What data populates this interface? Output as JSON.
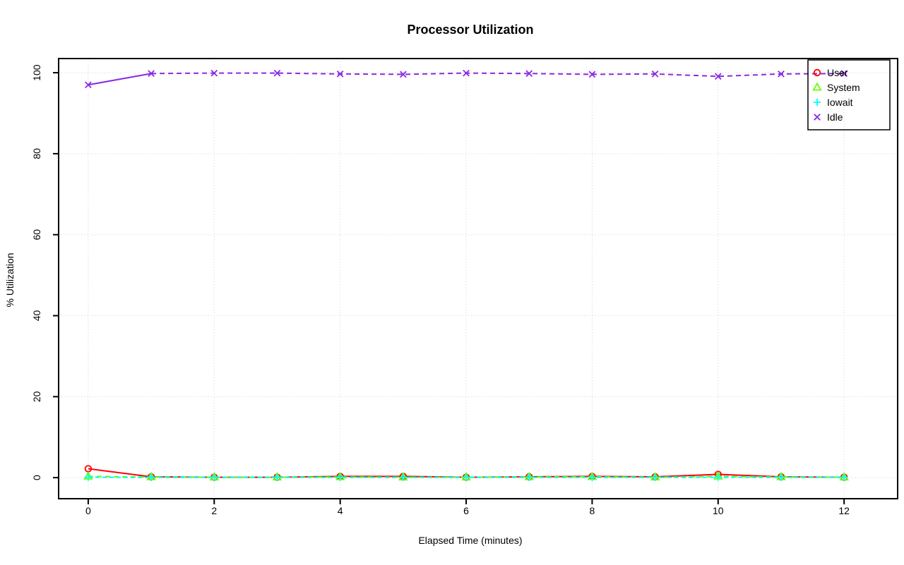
{
  "chart_data": {
    "type": "line",
    "title": "Processor Utilization",
    "xlabel": "Elapsed Time (minutes)",
    "ylabel": "% Utilization",
    "x": [
      0,
      1,
      2,
      3,
      4,
      5,
      6,
      7,
      8,
      9,
      10,
      11,
      12
    ],
    "xticks": [
      0,
      2,
      4,
      6,
      8,
      10,
      12
    ],
    "yticks": [
      0,
      20,
      40,
      60,
      80,
      100
    ],
    "xlim": [
      -0.47,
      12.85
    ],
    "ylim": [
      -5.2,
      103.5
    ],
    "grid": true,
    "grid_color": "#d3d3d3",
    "axis_color": "#000000",
    "background": "#ffffff",
    "legend_position": "top-right",
    "series": [
      {
        "name": "User",
        "color": "#ff0000",
        "marker": "circle",
        "line_style": "solid",
        "values": [
          2.2,
          0.2,
          0.1,
          0.1,
          0.3,
          0.3,
          0.1,
          0.2,
          0.3,
          0.2,
          0.8,
          0.2,
          0.1
        ]
      },
      {
        "name": "System",
        "color": "#66ff00",
        "marker": "triangle",
        "line_style": "dashed",
        "values": [
          0.3,
          0.15,
          0.1,
          0.1,
          0.15,
          0.1,
          0.1,
          0.15,
          0.2,
          0.1,
          0.3,
          0.15,
          0.1
        ]
      },
      {
        "name": "Iowait",
        "color": "#00ffff",
        "marker": "plus",
        "line_style": "dotted",
        "values": [
          0.1,
          0.05,
          0.05,
          0.05,
          0.05,
          0.05,
          0.05,
          0.05,
          0.05,
          0.05,
          0.1,
          0.05,
          0.05
        ]
      },
      {
        "name": "Idle",
        "color": "#8a2be2",
        "marker": "x",
        "line_style": "dashed",
        "first_segment_solid": true,
        "values": [
          97.0,
          99.8,
          99.9,
          99.9,
          99.7,
          99.6,
          99.9,
          99.8,
          99.6,
          99.7,
          99.1,
          99.7,
          99.8
        ]
      }
    ]
  }
}
